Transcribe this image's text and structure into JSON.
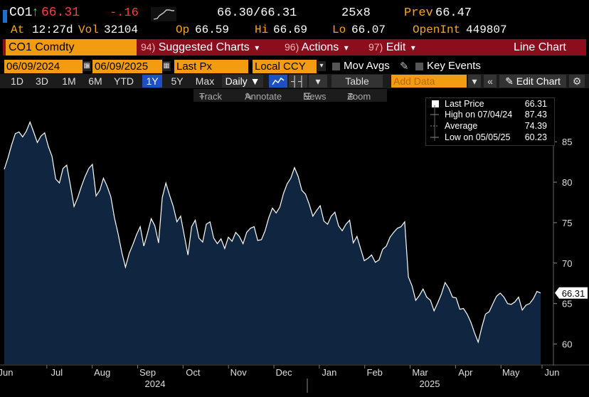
{
  "header": {
    "ticker": "CO1",
    "arrow": "↑",
    "last": "66.31",
    "change": "-.16",
    "bid_ask": "66.30/66.31",
    "size": "25x8",
    "prev_label": "Prev",
    "prev": "66.47",
    "at_label": "At",
    "time": "12:27d",
    "vol_label": "Vol",
    "vol": "32104",
    "op_label": "Op",
    "open": "66.59",
    "hi_label": "Hi",
    "high": "66.69",
    "lo_label": "Lo",
    "low": "66.07",
    "oi_label": "OpenInt",
    "open_int": "449807"
  },
  "menu": {
    "security": "CO1 Comdty",
    "suggested_num": "94)",
    "suggested": "Suggested Charts",
    "actions_num": "96)",
    "actions": "Actions",
    "edit_num": "97)",
    "edit": "Edit",
    "dropdown_arrow": "▾",
    "title": "Line Chart"
  },
  "params": {
    "start_date": "06/09/2024",
    "dash": "-",
    "end_date": "06/09/2025",
    "field": "Last Px",
    "currency": "Local CCY",
    "mov_avgs": "Mov Avgs",
    "key_events": "Key Events"
  },
  "periods": {
    "buttons": [
      "1D",
      "3D",
      "1M",
      "6M",
      "YTD",
      "1Y",
      "5Y",
      "Max"
    ],
    "active": "1Y",
    "frequency": "Daily ▼",
    "table": "Table",
    "add_data_placeholder": "Add Data",
    "edit_chart": "Edit Chart"
  },
  "tools": {
    "track": "Track",
    "annotate": "Annotate",
    "news": "News",
    "zoom": "Zoom"
  },
  "legend": {
    "last_label": "Last Price",
    "last_value": "66.31",
    "high_label": "High on 07/04/24",
    "high_value": "87.43",
    "avg_label": "Average",
    "avg_value": "74.39",
    "low_label": "Low on 05/05/25",
    "low_value": "60.23"
  },
  "colors": {
    "accent": "#f39c12",
    "menubar": "#8b0d1e",
    "area_fill": "#0f2540",
    "line": "#ffffff"
  },
  "chart_data": {
    "type": "area",
    "title": "CO1 Comdty Line Chart",
    "series": [
      {
        "name": "Last Price",
        "values": [
          81.6,
          83.0,
          84.6,
          86.0,
          86.2,
          85.6,
          86.3,
          87.43,
          86.2,
          84.9,
          85.7,
          86.1,
          84.4,
          83.2,
          80.4,
          79.9,
          81.7,
          82.1,
          79.6,
          77.0,
          78.1,
          79.5,
          80.7,
          81.7,
          82.2,
          78.3,
          79.0,
          80.5,
          79.5,
          78.2,
          75.6,
          73.6,
          71.3,
          69.5,
          71.2,
          72.3,
          73.5,
          74.5,
          72.1,
          73.7,
          75.5,
          74.6,
          72.5,
          78.1,
          79.9,
          78.4,
          77.0,
          75.1,
          75.8,
          73.4,
          71.0,
          74.5,
          75.3,
          73.1,
          72.6,
          74.8,
          75.1,
          73.1,
          72.4,
          73.0,
          71.8,
          73.2,
          72.7,
          73.8,
          73.3,
          72.4,
          73.8,
          74.3,
          74.5,
          72.8,
          72.9,
          74.0,
          75.6,
          76.8,
          76.2,
          76.9,
          78.6,
          79.8,
          80.5,
          81.8,
          80.7,
          79.0,
          78.5,
          77.3,
          75.8,
          76.5,
          77.1,
          75.2,
          74.8,
          75.8,
          76.3,
          74.6,
          74.0,
          74.8,
          75.3,
          72.5,
          73.3,
          71.8,
          70.3,
          70.6,
          71.0,
          70.1,
          70.4,
          71.7,
          72.1,
          73.2,
          73.8,
          74.3,
          74.5,
          75.1,
          68.3,
          67.2,
          65.4,
          66.0,
          66.8,
          65.8,
          65.4,
          64.1,
          65.1,
          66.2,
          67.6,
          66.9,
          65.8,
          65.7,
          64.3,
          64.4,
          63.7,
          62.7,
          61.4,
          60.23,
          62.1,
          63.7,
          64.0,
          65.0,
          65.9,
          66.3,
          65.8,
          65.0,
          64.9,
          65.2,
          65.8,
          64.2,
          64.8,
          65.0,
          65.6,
          66.5,
          66.31
        ],
        "note": "Daily last price, approximate (read from chart)"
      }
    ],
    "last_label": "66.31",
    "y_ticks": [
      60,
      65,
      70,
      75,
      80,
      85
    ],
    "ylim": [
      57.5,
      89.5
    ],
    "x_tick_labels": [
      "Jun",
      "Jul",
      "Aug",
      "Sep",
      "Oct",
      "Nov",
      "Dec",
      "Jan",
      "Feb",
      "Mar",
      "Apr",
      "May",
      "Jun"
    ],
    "x_tick_fractions": [
      0.0,
      0.084,
      0.168,
      0.252,
      0.336,
      0.42,
      0.504,
      0.588,
      0.672,
      0.756,
      0.84,
      0.924,
      1.0
    ],
    "year_labels": [
      "2024",
      "2025"
    ],
    "x_range": [
      "06/09/2024",
      "06/09/2025"
    ]
  }
}
